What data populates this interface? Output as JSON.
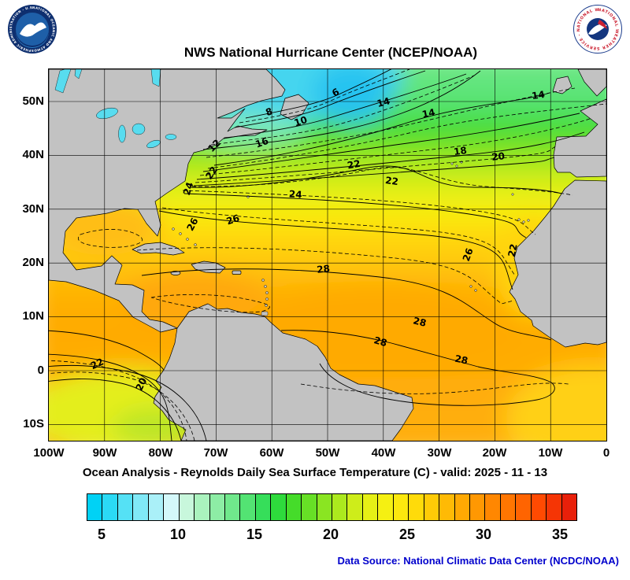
{
  "header": {
    "title": "NWS National Hurricane Center (NCEP/NOAA)"
  },
  "logos": {
    "noaa_ring": "NATIONAL OCEANIC AND ATMOSPHERIC ADMINISTRATION - U.S. DEPARTMENT OF COMMERCE",
    "nws_ring": "NATIONAL WEATHER SERVICE - NATIONAL WEATHER SERVICE"
  },
  "map": {
    "lat_labels": [
      "50N",
      "40N",
      "30N",
      "20N",
      "10N",
      "0",
      "10S"
    ],
    "lon_labels": [
      "100W",
      "90W",
      "80W",
      "70W",
      "60W",
      "50W",
      "40W",
      "30W",
      "20W",
      "10W",
      "0"
    ],
    "contour_labels": [
      "6",
      "8",
      "10",
      "12",
      "14",
      "14",
      "14",
      "16",
      "18",
      "20",
      "22",
      "22",
      "22",
      "24",
      "24",
      "26",
      "26",
      "26",
      "22",
      "28",
      "28",
      "28",
      "28",
      "22",
      "20"
    ]
  },
  "caption": "Ocean Analysis - Reynolds Daily Sea Surface Temperature (C) - valid: 2025 - 11 - 13",
  "colorbar": {
    "tick_labels": [
      "5",
      "10",
      "15",
      "20",
      "25",
      "30",
      "35"
    ],
    "colors": [
      "#00D2F5",
      "#2BDAF5",
      "#55E1F5",
      "#80E9F7",
      "#AAF0F8",
      "#D4F8FA",
      "#C8F7DC",
      "#AAF2BE",
      "#8DEDA5",
      "#70E88C",
      "#53E373",
      "#36DE5A",
      "#2EDA3C",
      "#45DC2A",
      "#67E026",
      "#8AE522",
      "#ACE91E",
      "#CEED1A",
      "#E6F016",
      "#F5F012",
      "#FCE80E",
      "#FFDB0A",
      "#FFCB07",
      "#FFBA05",
      "#FFA903",
      "#FF9802",
      "#FF8701",
      "#FF7601",
      "#FF6401",
      "#FF4A02",
      "#F53505",
      "#E8200A"
    ]
  },
  "footer": {
    "data_source": "Data Source: National Climatic Data Center (NCDC/NOAA)"
  },
  "colors": {
    "land": "#C2C2C2",
    "source_text": "#0000CC"
  }
}
